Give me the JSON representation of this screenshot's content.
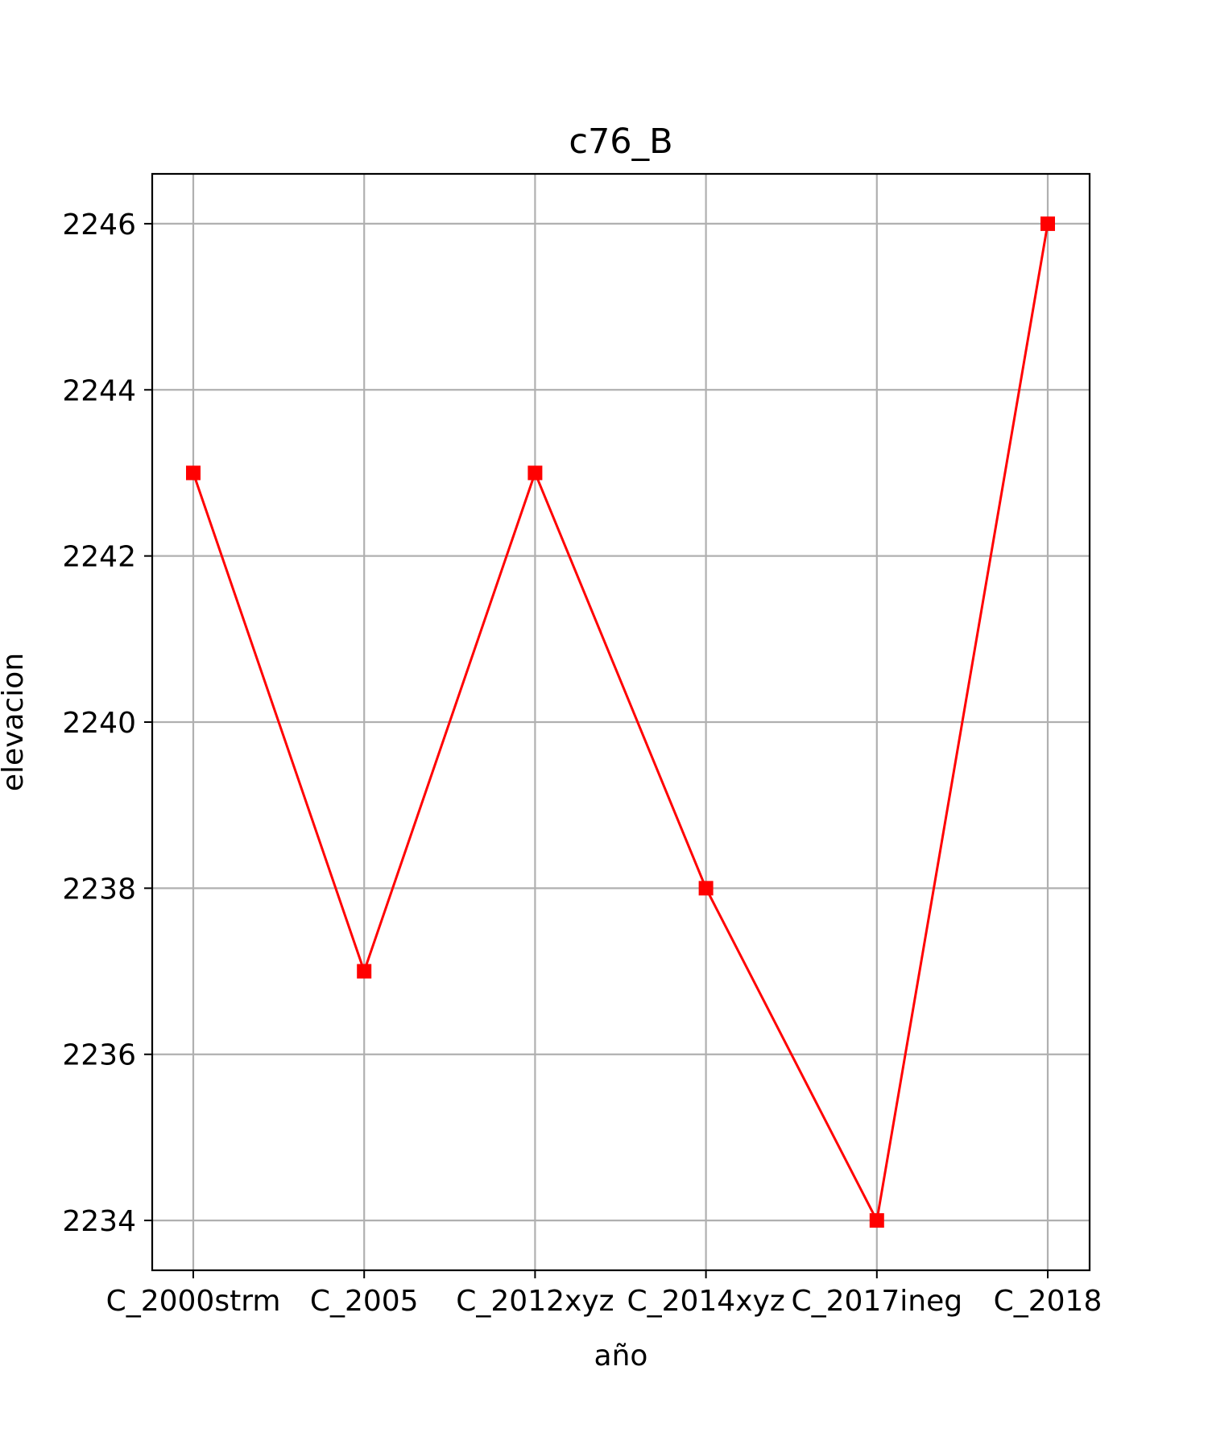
{
  "chart_data": {
    "type": "line",
    "title": "c76_B",
    "xlabel": "año",
    "ylabel": "elevacion",
    "categories": [
      "C_2000strm",
      "C_2005",
      "C_2012xyz",
      "C_2014xyz",
      "C_2017ineg",
      "C_2018"
    ],
    "series": [
      {
        "values": [
          2243,
          2237,
          2243,
          2238,
          2234,
          2246
        ]
      }
    ],
    "ylim": [
      2233.4,
      2246.6
    ],
    "yticks": [
      2234,
      2236,
      2238,
      2240,
      2242,
      2244,
      2246
    ],
    "grid": true,
    "marker": "square",
    "line_color": "#ff0000",
    "grid_color": "#b0b0b0"
  }
}
